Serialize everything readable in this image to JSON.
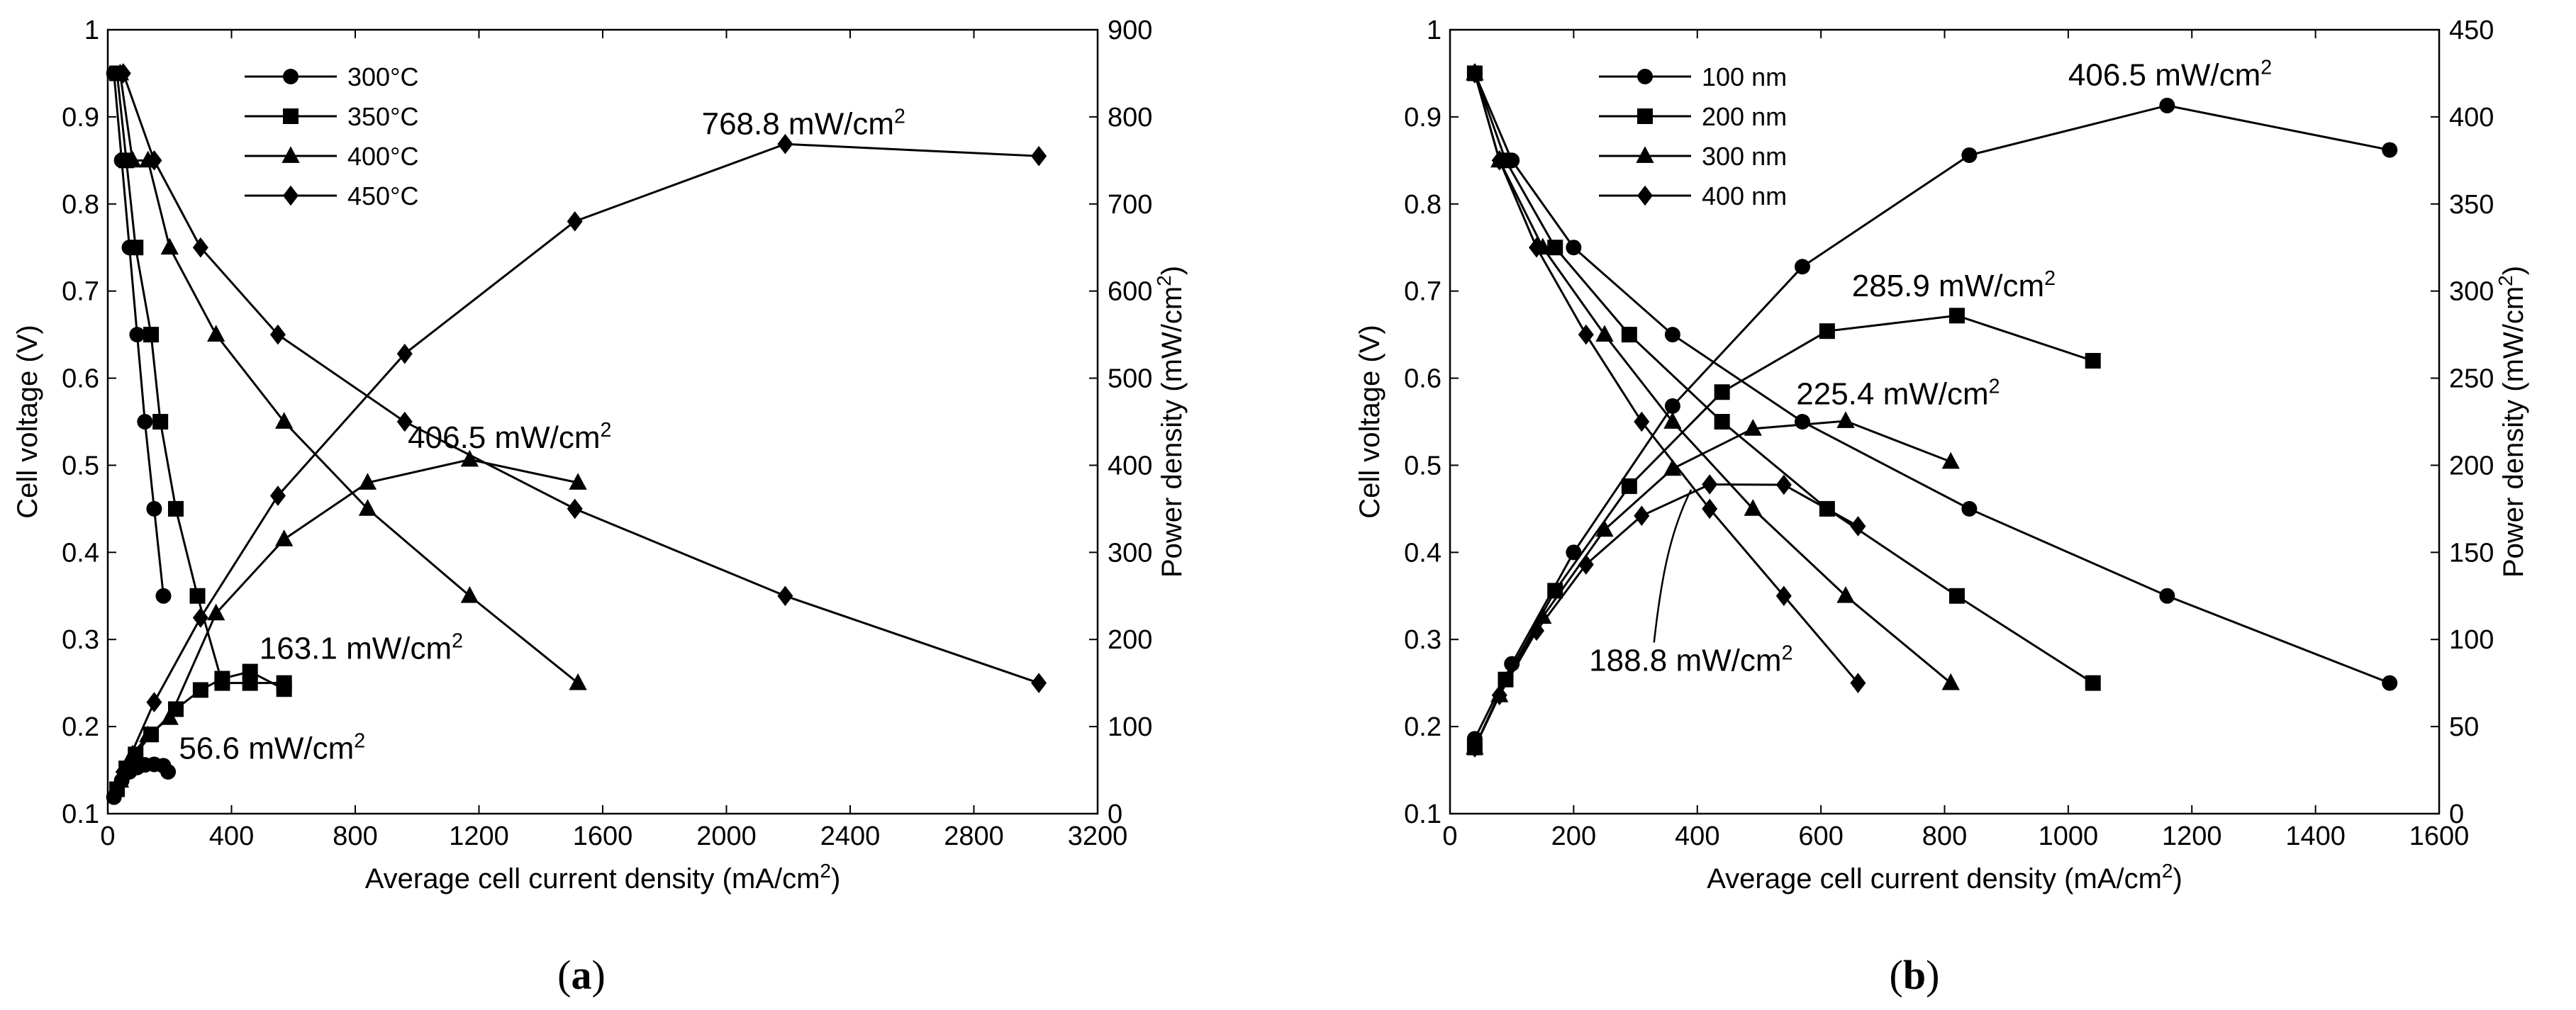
{
  "figure": {
    "panels": [
      {
        "label": "(a)",
        "label_letter": "a"
      },
      {
        "label": "(b)",
        "label_letter": "b"
      }
    ]
  },
  "chart_data": [
    {
      "type": "line",
      "panel": "a",
      "xlabel": "Average cell current density (mA/cm²)",
      "ylabel_left": "Cell voltage (V)",
      "ylabel_right": "Power density (mW/cm²)",
      "xlim": [
        0,
        3200
      ],
      "ylim_left": [
        0.1,
        1.0
      ],
      "ylim_right": [
        0,
        900
      ],
      "x_ticks": [
        0,
        400,
        800,
        1200,
        1600,
        2000,
        2400,
        2800,
        3200
      ],
      "y_left_ticks": [
        0.1,
        0.2,
        0.3,
        0.4,
        0.5,
        0.6,
        0.7,
        0.8,
        0.9,
        1
      ],
      "y_right_ticks": [
        0,
        100,
        200,
        300,
        400,
        500,
        600,
        700,
        800,
        900
      ],
      "grid": false,
      "legend_position": "top-left",
      "series": [
        {
          "name": "300°C",
          "marker": "circle",
          "voltage": {
            "x": [
              20,
              45,
              70,
              95,
              120,
              150,
              180
            ],
            "y": [
              0.95,
              0.85,
              0.75,
              0.65,
              0.55,
              0.45,
              0.35
            ]
          },
          "power": {
            "x": [
              20,
              45,
              70,
              95,
              120,
              150,
              180,
              195
            ],
            "y": [
              19,
              38,
              48,
              53,
              56,
              56.6,
              55,
              48
            ]
          }
        },
        {
          "name": "350°C",
          "marker": "square",
          "voltage": {
            "x": [
              30,
              60,
              90,
              140,
              170,
              220,
              290,
              370,
              460,
              570
            ],
            "y": [
              0.95,
              0.85,
              0.75,
              0.65,
              0.55,
              0.45,
              0.35,
              0.25,
              0.25,
              0.25
            ]
          },
          "power": {
            "x": [
              30,
              60,
              90,
              140,
              220,
              300,
              370,
              460,
              570
            ],
            "y": [
              28,
              52,
              68,
              91,
              120,
              142,
              155,
              163.1,
              143
            ]
          }
        },
        {
          "name": "400°C",
          "marker": "triangle",
          "voltage": {
            "x": [
              40,
              80,
              130,
              200,
              350,
              570,
              840,
              1170,
              1520
            ],
            "y": [
              0.95,
              0.85,
              0.85,
              0.75,
              0.65,
              0.55,
              0.45,
              0.35,
              0.25
            ]
          },
          "power": {
            "x": [
              40,
              80,
              130,
              200,
              350,
              570,
              840,
              1170,
              1520
            ],
            "y": [
              38,
              68,
              90,
              110,
              230,
              315,
              380,
              406.5,
              380
            ]
          }
        },
        {
          "name": "450°C",
          "marker": "diamond",
          "voltage": {
            "x": [
              50,
              150,
              300,
              550,
              960,
              1510,
              2190,
              3010
            ],
            "y": [
              0.95,
              0.85,
              0.75,
              0.65,
              0.55,
              0.45,
              0.35,
              0.25
            ]
          },
          "power": {
            "x": [
              50,
              150,
              300,
              550,
              960,
              1510,
              2190,
              3010
            ],
            "y": [
              48,
              128,
              225,
              365,
              528,
              680,
              768.8,
              755
            ]
          }
        }
      ],
      "annotations": [
        {
          "text_main": "768.8 mW/cm",
          "text_sup": "2",
          "x": 1920,
          "y_right": 780
        },
        {
          "text_main": "406.5 mW/cm",
          "text_sup": "2",
          "x": 970,
          "y_right": 420
        },
        {
          "text_main": "163.1 mW/cm",
          "text_sup": "2",
          "x": 490,
          "y_right": 178
        },
        {
          "text_main": "56.6 mW/cm",
          "text_sup": "2",
          "x": 230,
          "y_right": 63
        }
      ]
    },
    {
      "type": "line",
      "panel": "b",
      "xlabel": "Average cell current density (mA/cm²)",
      "ylabel_left": "Cell voltage (V)",
      "ylabel_right": "Power density (mW/cm²)",
      "xlim": [
        0,
        1600
      ],
      "ylim_left": [
        0.1,
        1.0
      ],
      "ylim_right": [
        0,
        450
      ],
      "x_ticks": [
        0,
        200,
        400,
        600,
        800,
        1000,
        1200,
        1400,
        1600
      ],
      "y_left_ticks": [
        0.1,
        0.2,
        0.3,
        0.4,
        0.5,
        0.6,
        0.7,
        0.8,
        0.9,
        1
      ],
      "y_right_ticks": [
        0,
        50,
        100,
        150,
        200,
        250,
        300,
        350,
        400,
        450
      ],
      "grid": false,
      "legend_position": "top-left",
      "series": [
        {
          "name": "100 nm",
          "marker": "circle",
          "voltage": {
            "x": [
              40,
              100,
              200,
              360,
              570,
              840,
              1160,
              1520
            ],
            "y": [
              0.95,
              0.85,
              0.75,
              0.65,
              0.55,
              0.45,
              0.35,
              0.25
            ]
          },
          "power": {
            "x": [
              40,
              100,
              200,
              360,
              570,
              840,
              1160,
              1520
            ],
            "y": [
              43,
              86,
              150,
              234,
              314,
              378,
              406.5,
              381
            ]
          }
        },
        {
          "name": "200 nm",
          "marker": "square",
          "voltage": {
            "x": [
              40,
              90,
              170,
              290,
              440,
              610,
              820,
              1040
            ],
            "y": [
              0.95,
              0.85,
              0.75,
              0.65,
              0.55,
              0.45,
              0.35,
              0.25
            ]
          },
          "power": {
            "x": [
              40,
              90,
              170,
              290,
              440,
              610,
              820,
              1040
            ],
            "y": [
              38,
              77,
              128,
              188,
              242,
              277,
              285.9,
              260
            ]
          }
        },
        {
          "name": "300 nm",
          "marker": "triangle",
          "voltage": {
            "x": [
              40,
              80,
              150,
              250,
              360,
              490,
              640,
              810
            ],
            "y": [
              0.95,
              0.85,
              0.75,
              0.65,
              0.55,
              0.45,
              0.35,
              0.25
            ]
          },
          "power": {
            "x": [
              40,
              80,
              150,
              250,
              360,
              490,
              640,
              810
            ],
            "y": [
              38,
              68,
              113,
              163,
              198,
              221,
              225.4,
              202
            ]
          }
        },
        {
          "name": "400 nm",
          "marker": "diamond",
          "voltage": {
            "x": [
              40,
              80,
              140,
              220,
              310,
              420,
              540,
              660
            ],
            "y": [
              0.95,
              0.85,
              0.75,
              0.65,
              0.55,
              0.45,
              0.35,
              0.25
            ]
          },
          "power": {
            "x": [
              40,
              80,
              140,
              220,
              310,
              420,
              540,
              660
            ],
            "y": [
              38,
              68,
              105,
              143,
              171,
              189,
              188.8,
              165
            ]
          }
        }
      ],
      "annotations": [
        {
          "text_main": "406.5 mW/cm",
          "text_sup": "2",
          "x": 1000,
          "y_right": 418
        },
        {
          "text_main": "285.9 mW/cm",
          "text_sup": "2",
          "x": 650,
          "y_right": 297
        },
        {
          "text_main": "225.4 mW/cm",
          "text_sup": "2",
          "x": 560,
          "y_right": 235
        },
        {
          "text_main": "188.8 mW/cm",
          "text_sup": "2",
          "x": 225,
          "y_right": 82
        }
      ]
    }
  ]
}
